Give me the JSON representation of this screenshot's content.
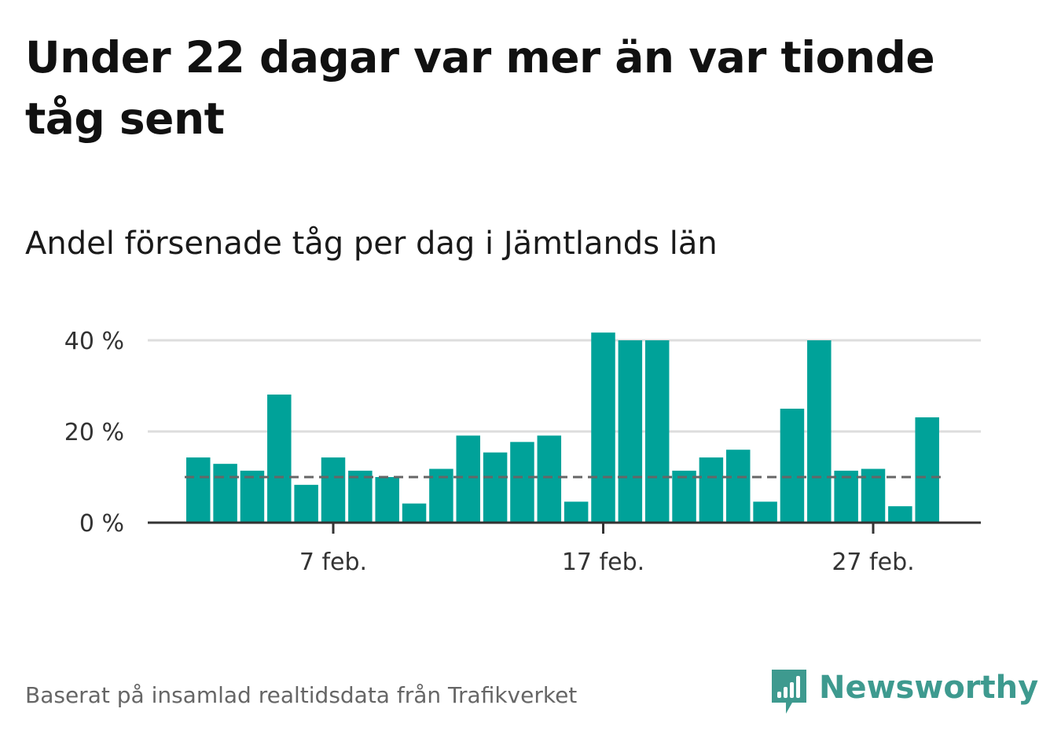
{
  "title": "Under 22 dagar var mer än var tionde tåg sent",
  "subtitle": "Andel försenade tåg per dag i Jämtlands län",
  "source": "Baserat på insamlad realtidsdata från Trafikverket",
  "brand": {
    "name": "Newsworthy",
    "color": "#3e9a8f"
  },
  "colors": {
    "bar": "#00a299",
    "reference_line": "#666666",
    "grid": "#dddddd",
    "axis": "#333333"
  },
  "chart_data": {
    "type": "bar",
    "x": [
      "2 feb.",
      "3 feb.",
      "4 feb.",
      "5 feb.",
      "6 feb.",
      "7 feb.",
      "8 feb.",
      "9 feb.",
      "10 feb.",
      "11 feb.",
      "12 feb.",
      "13 feb.",
      "14 feb.",
      "15 feb.",
      "16 feb.",
      "17 feb.",
      "18 feb.",
      "19 feb.",
      "20 feb.",
      "21 feb.",
      "22 feb.",
      "23 feb.",
      "24 feb.",
      "25 feb.",
      "26 feb.",
      "27 feb.",
      "28 feb.",
      "29 feb."
    ],
    "values": [
      14.3,
      12.9,
      11.4,
      28.1,
      8.3,
      14.3,
      11.4,
      10.0,
      4.2,
      11.8,
      19.1,
      15.4,
      17.7,
      19.1,
      4.6,
      41.7,
      40.0,
      40.0,
      11.4,
      14.3,
      16.0,
      4.6,
      25.0,
      40.0,
      11.4,
      11.8,
      3.6,
      23.1
    ],
    "ylim": [
      0,
      40
    ],
    "yticks": [
      0,
      20,
      40
    ],
    "ytick_labels": [
      "0 %",
      "20 %",
      "40 %"
    ],
    "xtick_labels": [
      {
        "label": "7 feb.",
        "index": 5
      },
      {
        "label": "17 feb.",
        "index": 15
      },
      {
        "label": "27 feb.",
        "index": 25
      }
    ],
    "reference_line": {
      "value": 10,
      "style": "dashed"
    },
    "grid": true,
    "legend": false
  }
}
